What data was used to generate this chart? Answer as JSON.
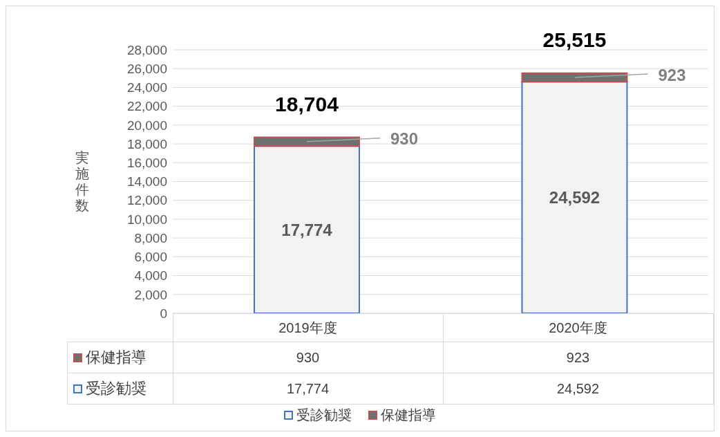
{
  "chart_data": {
    "type": "bar",
    "stacked": true,
    "ylabel": "実施件数",
    "categories": [
      "2019年度",
      "2020年度"
    ],
    "series": [
      {
        "name": "受診勧奨",
        "color": "#f2f2f2",
        "values": [
          17774,
          24592
        ],
        "value_labels": [
          "17,774",
          "24,592"
        ]
      },
      {
        "name": "保健指導",
        "color": "#707070",
        "values": [
          930,
          923
        ],
        "value_labels": [
          "930",
          "923"
        ]
      }
    ],
    "totals": [
      "18,704",
      "25,515"
    ],
    "ylim": [
      0,
      28000
    ],
    "yticks": [
      {
        "value": 0,
        "label": "0"
      },
      {
        "value": 2000,
        "label": "2,000"
      },
      {
        "value": 4000,
        "label": "4,000"
      },
      {
        "value": 6000,
        "label": "6,000"
      },
      {
        "value": 8000,
        "label": "8,000"
      },
      {
        "value": 10000,
        "label": "10,000"
      },
      {
        "value": 12000,
        "label": "12,000"
      },
      {
        "value": 14000,
        "label": "14,000"
      },
      {
        "value": 16000,
        "label": "16,000"
      },
      {
        "value": 18000,
        "label": "18,000"
      },
      {
        "value": 20000,
        "label": "20,000"
      },
      {
        "value": 22000,
        "label": "22,000"
      },
      {
        "value": 24000,
        "label": "24,000"
      },
      {
        "value": 26000,
        "label": "26,000"
      },
      {
        "value": 28000,
        "label": "28,000"
      }
    ],
    "grid": "y",
    "legend": "bottom"
  }
}
